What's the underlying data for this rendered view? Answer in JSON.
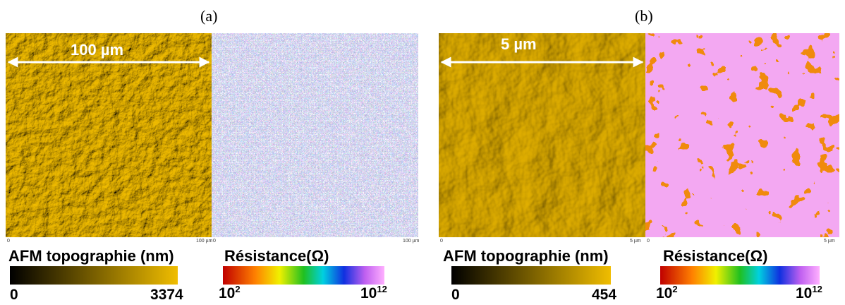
{
  "panels": [
    {
      "label": "(a)",
      "scale_bar": "100 µm",
      "images": [
        {
          "axis_start": "0",
          "axis_end": "100 µm"
        },
        {
          "axis_start": "0",
          "axis_end": "100 µm"
        }
      ],
      "topography": {
        "title": "AFM topographie (nm)",
        "min": 0,
        "max": 3374
      },
      "resistance": {
        "title": "Résistance(Ω)",
        "min": {
          "base": 10,
          "exp": 2
        },
        "max": {
          "base": 10,
          "exp": 12
        }
      }
    },
    {
      "label": "(b)",
      "scale_bar": "5 µm",
      "images": [
        {
          "axis_start": "0",
          "axis_end": "5 µm"
        },
        {
          "axis_start": "0",
          "axis_end": "5 µm"
        }
      ],
      "topography": {
        "title": "AFM topographie (nm)",
        "min": 0,
        "max": 454
      },
      "resistance": {
        "title": "Résistance(Ω)",
        "min": {
          "base": 10,
          "exp": 2
        },
        "max": {
          "base": 10,
          "exp": 12
        }
      }
    }
  ]
}
